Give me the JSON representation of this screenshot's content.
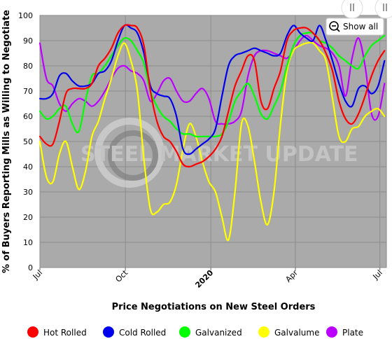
{
  "chart_data": {
    "type": "line",
    "title": "",
    "xlabel": "Price Negotiations on New Steel Orders",
    "ylabel": "% of Buyers Reporting Mills as Willing to Negotiate",
    "ylim": [
      0,
      100
    ],
    "yticks": [
      0,
      10,
      20,
      30,
      40,
      50,
      60,
      70,
      80,
      90,
      100
    ],
    "xlim": [
      "2019-07-01",
      "2020-07-08"
    ],
    "xticks": [
      {
        "date": "2019-07-01",
        "label": "Jul",
        "bold": false
      },
      {
        "date": "2019-10-01",
        "label": "Oct",
        "bold": false
      },
      {
        "date": "2020-01-01",
        "label": "2020",
        "bold": true
      },
      {
        "date": "2020-04-01",
        "label": "Apr",
        "bold": false
      },
      {
        "date": "2020-07-01",
        "label": "Jul",
        "bold": false
      }
    ],
    "grid": true,
    "background": "#aaaaaa",
    "watermark": "STEEL MARKET UPDATE",
    "legend_position": "bottom",
    "show_all_label": "Show all",
    "series": [
      {
        "name": "Hot Rolled",
        "color": "#ff0000",
        "points": [
          [
            "2019-07-01",
            52
          ],
          [
            "2019-07-08",
            49
          ],
          [
            "2019-07-15",
            49
          ],
          [
            "2019-07-22",
            58
          ],
          [
            "2019-07-29",
            69
          ],
          [
            "2019-08-05",
            71
          ],
          [
            "2019-08-12",
            71
          ],
          [
            "2019-08-19",
            71
          ],
          [
            "2019-08-26",
            73
          ],
          [
            "2019-09-02",
            80
          ],
          [
            "2019-09-09",
            83
          ],
          [
            "2019-09-16",
            87
          ],
          [
            "2019-09-23",
            93
          ],
          [
            "2019-09-30",
            96
          ],
          [
            "2019-10-07",
            96
          ],
          [
            "2019-10-14",
            95
          ],
          [
            "2019-10-21",
            88
          ],
          [
            "2019-10-28",
            70
          ],
          [
            "2019-11-04",
            58
          ],
          [
            "2019-11-11",
            52
          ],
          [
            "2019-11-18",
            50
          ],
          [
            "2019-11-25",
            46
          ],
          [
            "2019-12-02",
            41
          ],
          [
            "2019-12-09",
            40
          ],
          [
            "2019-12-16",
            41
          ],
          [
            "2019-12-23",
            42
          ],
          [
            "2019-12-30",
            44
          ],
          [
            "2020-01-06",
            47
          ],
          [
            "2020-01-13",
            52
          ],
          [
            "2020-01-20",
            62
          ],
          [
            "2020-01-27",
            72
          ],
          [
            "2020-02-03",
            78
          ],
          [
            "2020-02-10",
            84
          ],
          [
            "2020-02-17",
            82
          ],
          [
            "2020-02-24",
            66
          ],
          [
            "2020-03-02",
            63
          ],
          [
            "2020-03-09",
            71
          ],
          [
            "2020-03-16",
            78
          ],
          [
            "2020-03-23",
            90
          ],
          [
            "2020-03-30",
            94
          ],
          [
            "2020-04-06",
            95
          ],
          [
            "2020-04-13",
            95
          ],
          [
            "2020-04-20",
            93
          ],
          [
            "2020-04-27",
            90
          ],
          [
            "2020-05-04",
            85
          ],
          [
            "2020-05-11",
            78
          ],
          [
            "2020-05-18",
            66
          ],
          [
            "2020-05-25",
            59
          ],
          [
            "2020-06-01",
            57
          ],
          [
            "2020-06-08",
            61
          ],
          [
            "2020-06-15",
            68
          ],
          [
            "2020-06-22",
            76
          ],
          [
            "2020-06-29",
            82
          ],
          [
            "2020-07-06",
            86
          ]
        ]
      },
      {
        "name": "Cold Rolled",
        "color": "#0000ee",
        "points": [
          [
            "2019-07-01",
            67
          ],
          [
            "2019-07-08",
            67
          ],
          [
            "2019-07-15",
            69
          ],
          [
            "2019-07-22",
            76
          ],
          [
            "2019-07-29",
            77
          ],
          [
            "2019-08-05",
            74
          ],
          [
            "2019-08-12",
            72
          ],
          [
            "2019-08-19",
            72
          ],
          [
            "2019-08-26",
            73
          ],
          [
            "2019-09-02",
            77
          ],
          [
            "2019-09-09",
            78
          ],
          [
            "2019-09-16",
            82
          ],
          [
            "2019-09-23",
            90
          ],
          [
            "2019-09-30",
            96
          ],
          [
            "2019-10-07",
            95
          ],
          [
            "2019-10-14",
            93
          ],
          [
            "2019-10-21",
            85
          ],
          [
            "2019-10-28",
            72
          ],
          [
            "2019-11-04",
            69
          ],
          [
            "2019-11-11",
            68
          ],
          [
            "2019-11-18",
            67
          ],
          [
            "2019-11-25",
            60
          ],
          [
            "2019-12-02",
            47
          ],
          [
            "2019-12-09",
            45
          ],
          [
            "2019-12-16",
            47
          ],
          [
            "2019-12-23",
            49
          ],
          [
            "2019-12-30",
            51
          ],
          [
            "2020-01-06",
            55
          ],
          [
            "2020-01-13",
            68
          ],
          [
            "2020-01-20",
            80
          ],
          [
            "2020-01-27",
            84
          ],
          [
            "2020-02-03",
            85
          ],
          [
            "2020-02-10",
            86
          ],
          [
            "2020-02-17",
            87
          ],
          [
            "2020-02-24",
            86
          ],
          [
            "2020-03-02",
            85
          ],
          [
            "2020-03-09",
            84
          ],
          [
            "2020-03-16",
            85
          ],
          [
            "2020-03-23",
            92
          ],
          [
            "2020-03-30",
            96
          ],
          [
            "2020-04-06",
            93
          ],
          [
            "2020-04-13",
            91
          ],
          [
            "2020-04-20",
            90
          ],
          [
            "2020-04-27",
            96
          ],
          [
            "2020-05-04",
            90
          ],
          [
            "2020-05-11",
            82
          ],
          [
            "2020-05-18",
            73
          ],
          [
            "2020-05-25",
            66
          ],
          [
            "2020-06-01",
            64
          ],
          [
            "2020-06-08",
            71
          ],
          [
            "2020-06-15",
            72
          ],
          [
            "2020-06-22",
            69
          ],
          [
            "2020-06-29",
            72
          ],
          [
            "2020-07-06",
            82
          ]
        ]
      },
      {
        "name": "Galvanized",
        "color": "#00ff00",
        "points": [
          [
            "2019-07-01",
            62
          ],
          [
            "2019-07-08",
            59
          ],
          [
            "2019-07-15",
            60
          ],
          [
            "2019-07-22",
            63
          ],
          [
            "2019-07-29",
            64
          ],
          [
            "2019-08-05",
            57
          ],
          [
            "2019-08-12",
            54
          ],
          [
            "2019-08-19",
            66
          ],
          [
            "2019-08-26",
            76
          ],
          [
            "2019-09-02",
            77
          ],
          [
            "2019-09-09",
            80
          ],
          [
            "2019-09-16",
            84
          ],
          [
            "2019-09-23",
            88
          ],
          [
            "2019-09-30",
            91
          ],
          [
            "2019-10-07",
            90
          ],
          [
            "2019-10-14",
            86
          ],
          [
            "2019-10-21",
            81
          ],
          [
            "2019-10-28",
            70
          ],
          [
            "2019-11-04",
            64
          ],
          [
            "2019-11-11",
            60
          ],
          [
            "2019-11-18",
            58
          ],
          [
            "2019-11-25",
            55
          ],
          [
            "2019-12-02",
            53
          ],
          [
            "2019-12-09",
            53
          ],
          [
            "2019-12-16",
            52
          ],
          [
            "2019-12-23",
            52
          ],
          [
            "2019-12-30",
            52
          ],
          [
            "2020-01-06",
            52
          ],
          [
            "2020-01-13",
            53
          ],
          [
            "2020-01-20",
            58
          ],
          [
            "2020-01-27",
            66
          ],
          [
            "2020-02-03",
            70
          ],
          [
            "2020-02-10",
            73
          ],
          [
            "2020-02-17",
            68
          ],
          [
            "2020-02-24",
            61
          ],
          [
            "2020-03-02",
            59
          ],
          [
            "2020-03-09",
            64
          ],
          [
            "2020-03-16",
            70
          ],
          [
            "2020-03-23",
            80
          ],
          [
            "2020-03-30",
            88
          ],
          [
            "2020-04-06",
            92
          ],
          [
            "2020-04-13",
            93
          ],
          [
            "2020-04-20",
            93
          ],
          [
            "2020-04-27",
            90
          ],
          [
            "2020-05-04",
            89
          ],
          [
            "2020-05-11",
            87
          ],
          [
            "2020-05-18",
            84
          ],
          [
            "2020-05-25",
            82
          ],
          [
            "2020-06-01",
            80
          ],
          [
            "2020-06-08",
            79
          ],
          [
            "2020-06-15",
            84
          ],
          [
            "2020-06-22",
            88
          ],
          [
            "2020-06-29",
            90
          ],
          [
            "2020-07-06",
            92
          ]
        ]
      },
      {
        "name": "Galvalume",
        "color": "#ffff00",
        "points": [
          [
            "2019-07-01",
            50
          ],
          [
            "2019-07-08",
            36
          ],
          [
            "2019-07-15",
            34
          ],
          [
            "2019-07-22",
            45
          ],
          [
            "2019-07-29",
            50
          ],
          [
            "2019-08-05",
            40
          ],
          [
            "2019-08-12",
            31
          ],
          [
            "2019-08-19",
            38
          ],
          [
            "2019-08-26",
            52
          ],
          [
            "2019-09-02",
            58
          ],
          [
            "2019-09-09",
            67
          ],
          [
            "2019-09-16",
            75
          ],
          [
            "2019-09-23",
            84
          ],
          [
            "2019-09-30",
            89
          ],
          [
            "2019-10-07",
            82
          ],
          [
            "2019-10-14",
            70
          ],
          [
            "2019-10-21",
            43
          ],
          [
            "2019-10-28",
            23
          ],
          [
            "2019-11-04",
            22
          ],
          [
            "2019-11-11",
            25
          ],
          [
            "2019-11-18",
            26
          ],
          [
            "2019-11-25",
            33
          ],
          [
            "2019-12-02",
            47
          ],
          [
            "2019-12-09",
            57
          ],
          [
            "2019-12-16",
            52
          ],
          [
            "2019-12-23",
            42
          ],
          [
            "2019-12-30",
            34
          ],
          [
            "2020-01-06",
            30
          ],
          [
            "2020-01-13",
            20
          ],
          [
            "2020-01-20",
            11
          ],
          [
            "2020-01-27",
            30
          ],
          [
            "2020-02-03",
            57
          ],
          [
            "2020-02-10",
            56
          ],
          [
            "2020-02-17",
            42
          ],
          [
            "2020-02-24",
            26
          ],
          [
            "2020-03-02",
            17
          ],
          [
            "2020-03-09",
            30
          ],
          [
            "2020-03-16",
            57
          ],
          [
            "2020-03-23",
            78
          ],
          [
            "2020-03-30",
            86
          ],
          [
            "2020-04-06",
            88
          ],
          [
            "2020-04-13",
            89
          ],
          [
            "2020-04-20",
            89
          ],
          [
            "2020-04-27",
            86
          ],
          [
            "2020-05-04",
            82
          ],
          [
            "2020-05-11",
            67
          ],
          [
            "2020-05-18",
            52
          ],
          [
            "2020-05-25",
            50
          ],
          [
            "2020-06-01",
            55
          ],
          [
            "2020-06-08",
            56
          ],
          [
            "2020-06-15",
            60
          ],
          [
            "2020-06-22",
            62
          ],
          [
            "2020-06-29",
            63
          ],
          [
            "2020-07-06",
            60
          ]
        ]
      },
      {
        "name": "Plate",
        "color": "#bb00ff",
        "points": [
          [
            "2019-07-01",
            89
          ],
          [
            "2019-07-08",
            75
          ],
          [
            "2019-07-15",
            72
          ],
          [
            "2019-07-22",
            65
          ],
          [
            "2019-07-29",
            62
          ],
          [
            "2019-08-05",
            65
          ],
          [
            "2019-08-12",
            67
          ],
          [
            "2019-08-19",
            66
          ],
          [
            "2019-08-26",
            64
          ],
          [
            "2019-09-02",
            66
          ],
          [
            "2019-09-09",
            70
          ],
          [
            "2019-09-16",
            75
          ],
          [
            "2019-09-23",
            79
          ],
          [
            "2019-09-30",
            80
          ],
          [
            "2019-10-07",
            78
          ],
          [
            "2019-10-14",
            77
          ],
          [
            "2019-10-21",
            74
          ],
          [
            "2019-10-28",
            66
          ],
          [
            "2019-11-04",
            69
          ],
          [
            "2019-11-11",
            74
          ],
          [
            "2019-11-18",
            75
          ],
          [
            "2019-11-25",
            70
          ],
          [
            "2019-12-02",
            66
          ],
          [
            "2019-12-09",
            66
          ],
          [
            "2019-12-16",
            69
          ],
          [
            "2019-12-23",
            71
          ],
          [
            "2019-12-30",
            67
          ],
          [
            "2020-01-06",
            58
          ],
          [
            "2020-01-13",
            57
          ],
          [
            "2020-01-20",
            57
          ],
          [
            "2020-01-27",
            58
          ],
          [
            "2020-02-03",
            62
          ],
          [
            "2020-02-10",
            76
          ],
          [
            "2020-02-17",
            84
          ],
          [
            "2020-02-24",
            86
          ],
          [
            "2020-03-02",
            86
          ],
          [
            "2020-03-09",
            85
          ],
          [
            "2020-03-16",
            84
          ],
          [
            "2020-03-23",
            83
          ],
          [
            "2020-03-30",
            86
          ],
          [
            "2020-04-06",
            90
          ],
          [
            "2020-04-13",
            92
          ],
          [
            "2020-04-20",
            90
          ],
          [
            "2020-04-27",
            88
          ],
          [
            "2020-05-04",
            87
          ],
          [
            "2020-05-11",
            85
          ],
          [
            "2020-05-18",
            80
          ],
          [
            "2020-05-25",
            68
          ],
          [
            "2020-06-01",
            83
          ],
          [
            "2020-06-08",
            91
          ],
          [
            "2020-06-15",
            80
          ],
          [
            "2020-06-22",
            61
          ],
          [
            "2020-06-29",
            60
          ],
          [
            "2020-07-06",
            73
          ]
        ]
      }
    ]
  }
}
